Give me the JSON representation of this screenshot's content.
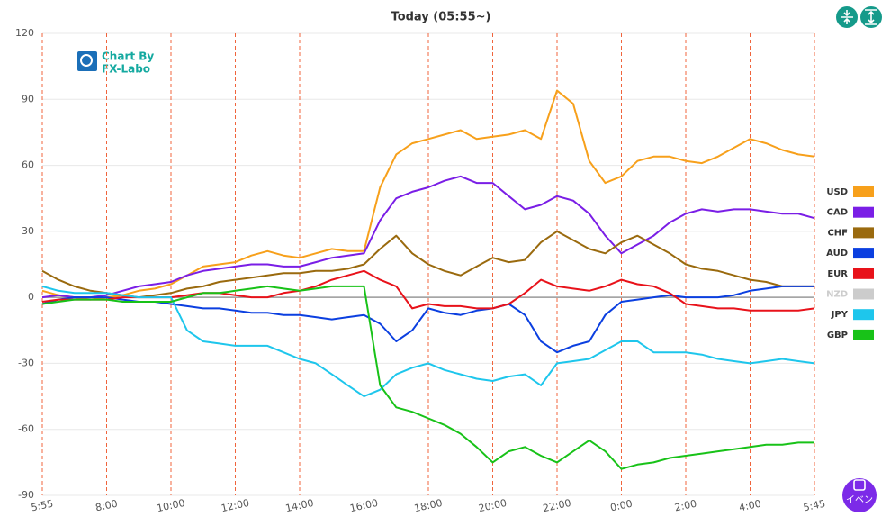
{
  "chart_data": {
    "type": "line",
    "title": "Today (05:55~)",
    "logo": [
      "Chart By",
      "FX-Labo"
    ],
    "event_button": "イベン",
    "categories": [
      "5:55",
      null,
      null,
      null,
      "8:00",
      null,
      null,
      null,
      "10:00",
      null,
      null,
      null,
      "12:00",
      null,
      null,
      null,
      "14:00",
      null,
      null,
      null,
      "16:00",
      null,
      null,
      null,
      "18:00",
      null,
      null,
      null,
      "20:00",
      null,
      null,
      null,
      "22:00",
      null,
      null,
      null,
      "0:00",
      null,
      null,
      null,
      "2:00",
      null,
      null,
      null,
      "4:00",
      null,
      null,
      null,
      "5:45"
    ],
    "ylim": [
      -90,
      120
    ],
    "yticks": [
      -90,
      -60,
      -30,
      0,
      30,
      60,
      90,
      120
    ],
    "grid": true,
    "legend": "right",
    "series": [
      {
        "name": "USD",
        "color": "#f7a01b",
        "visible": true,
        "values": [
          3,
          1,
          0,
          -1,
          0,
          1,
          3,
          4,
          6,
          10,
          14,
          15,
          16,
          19,
          21,
          19,
          18,
          20,
          22,
          21,
          21,
          50,
          65,
          70,
          72,
          74,
          76,
          72,
          73,
          74,
          76,
          72,
          94,
          88,
          62,
          52,
          55,
          62,
          64,
          64,
          62,
          61,
          64,
          68,
          72,
          70,
          67,
          65,
          64
        ]
      },
      {
        "name": "CAD",
        "color": "#7a1ee6",
        "visible": true,
        "values": [
          0,
          1,
          0,
          0,
          1,
          3,
          5,
          6,
          7,
          10,
          12,
          13,
          14,
          15,
          15,
          14,
          14,
          16,
          18,
          19,
          20,
          35,
          45,
          48,
          50,
          53,
          55,
          52,
          52,
          46,
          40,
          42,
          46,
          44,
          38,
          28,
          20,
          24,
          28,
          34,
          38,
          40,
          39,
          40,
          40,
          39,
          38,
          38,
          36
        ]
      },
      {
        "name": "CHF",
        "color": "#9a6a0e",
        "visible": true,
        "values": [
          12,
          8,
          5,
          3,
          2,
          1,
          0,
          1,
          2,
          4,
          5,
          7,
          8,
          9,
          10,
          11,
          11,
          12,
          12,
          13,
          15,
          22,
          28,
          20,
          15,
          12,
          10,
          14,
          18,
          16,
          17,
          25,
          30,
          26,
          22,
          20,
          25,
          28,
          24,
          20,
          15,
          13,
          12,
          10,
          8,
          7,
          5,
          5,
          5
        ]
      },
      {
        "name": "AUD",
        "color": "#0b3fe0",
        "visible": true,
        "values": [
          -3,
          -1,
          0,
          0,
          0,
          -1,
          -2,
          -2,
          -3,
          -4,
          -5,
          -5,
          -6,
          -7,
          -7,
          -8,
          -8,
          -9,
          -10,
          -9,
          -8,
          -12,
          -20,
          -15,
          -5,
          -7,
          -8,
          -6,
          -5,
          -3,
          -8,
          -20,
          -25,
          -22,
          -20,
          -8,
          -2,
          -1,
          0,
          1,
          0,
          0,
          0,
          1,
          3,
          4,
          5,
          5,
          5
        ]
      },
      {
        "name": "EUR",
        "color": "#e8121a",
        "visible": true,
        "values": [
          -2,
          -1,
          -1,
          -1,
          -1,
          0,
          0,
          0,
          0,
          1,
          2,
          2,
          1,
          0,
          0,
          2,
          3,
          5,
          8,
          10,
          12,
          8,
          5,
          -5,
          -3,
          -4,
          -4,
          -5,
          -5,
          -3,
          2,
          8,
          5,
          4,
          3,
          5,
          8,
          6,
          5,
          2,
          -3,
          -4,
          -5,
          -5,
          -6,
          -6,
          -6,
          -6,
          -5
        ]
      },
      {
        "name": "NZD",
        "color": "#cccccc",
        "visible": false,
        "values": [
          null,
          null,
          null,
          null,
          null,
          null,
          null,
          null,
          null,
          null,
          null,
          null,
          null,
          null,
          null,
          null,
          null,
          null,
          null,
          null,
          null,
          null,
          null,
          null,
          null,
          null,
          null,
          null,
          null,
          null,
          null,
          null,
          null,
          null,
          null,
          null,
          null,
          null,
          null,
          null,
          null,
          null,
          null,
          null,
          null,
          null,
          null,
          null,
          null
        ]
      },
      {
        "name": "JPY",
        "color": "#1ec6ec",
        "visible": true,
        "values": [
          5,
          3,
          2,
          2,
          2,
          1,
          0,
          0,
          0,
          -15,
          -20,
          -21,
          -22,
          -22,
          -22,
          -25,
          -28,
          -30,
          -35,
          -40,
          -45,
          -42,
          -35,
          -32,
          -30,
          -33,
          -35,
          -37,
          -38,
          -36,
          -35,
          -40,
          -30,
          -29,
          -28,
          -24,
          -20,
          -20,
          -25,
          -25,
          -25,
          -26,
          -28,
          -29,
          -30,
          -29,
          -28,
          -29,
          -30
        ]
      },
      {
        "name": "GBP",
        "color": "#18c218",
        "visible": true,
        "values": [
          -3,
          -2,
          -1,
          -1,
          -1,
          -2,
          -2,
          -2,
          -2,
          0,
          2,
          2,
          3,
          4,
          5,
          4,
          3,
          4,
          5,
          5,
          5,
          -40,
          -50,
          -52,
          -55,
          -58,
          -62,
          -68,
          -75,
          -70,
          -68,
          -72,
          -75,
          -70,
          -65,
          -70,
          -78,
          -76,
          -75,
          -73,
          -72,
          -71,
          -70,
          -69,
          -68,
          -67,
          -67,
          -66,
          -66
        ]
      }
    ]
  }
}
